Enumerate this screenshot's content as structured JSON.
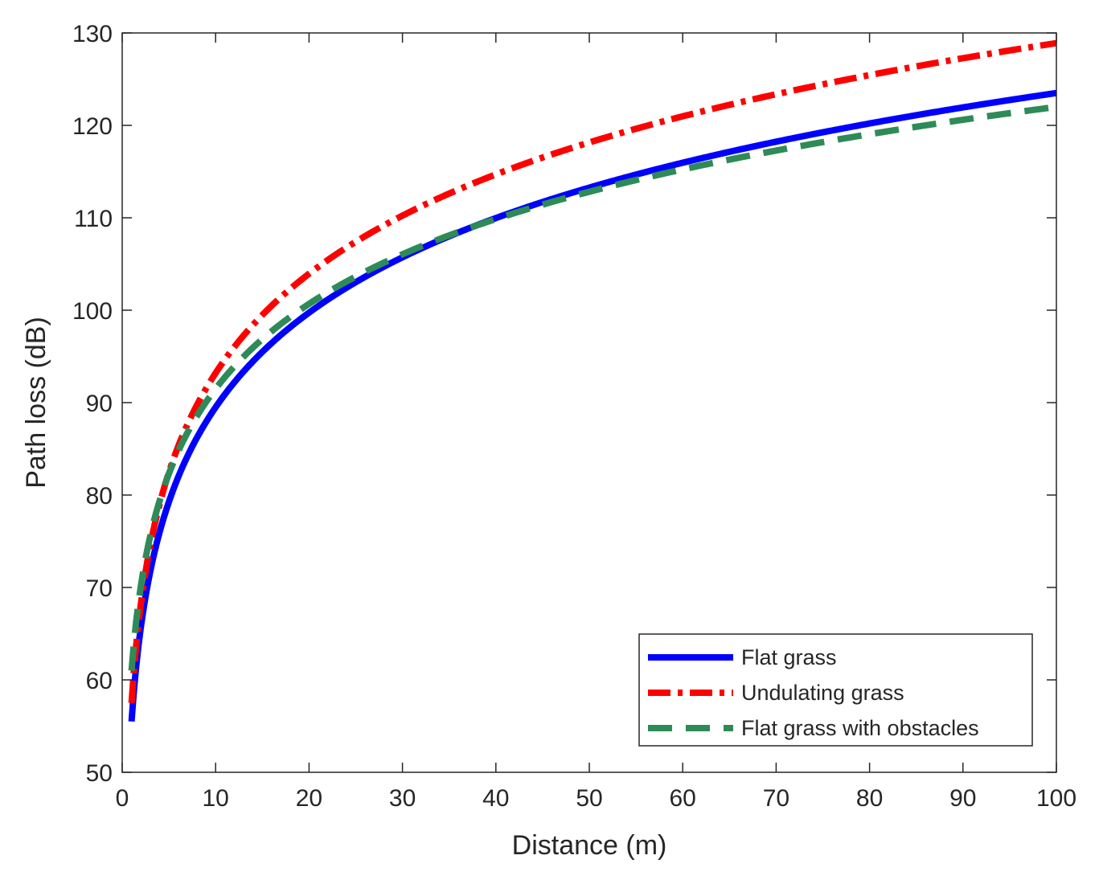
{
  "chart_data": {
    "type": "line",
    "title": "",
    "xlabel": "Distance (m)",
    "ylabel": "Path loss (dB)",
    "xlim": [
      0,
      100
    ],
    "ylim": [
      50,
      130
    ],
    "xticks": [
      0,
      10,
      20,
      30,
      40,
      50,
      60,
      70,
      80,
      90,
      100
    ],
    "yticks": [
      50,
      60,
      70,
      80,
      90,
      100,
      110,
      120,
      130
    ],
    "grid": false,
    "legend_position": "bottom-right",
    "series": [
      {
        "name": "Flat grass",
        "color": "#0000ff",
        "style": "solid",
        "model": {
          "intercept_db": 55.5,
          "slope_db_per_decade": 34,
          "d_min": 1,
          "d_max": 100
        },
        "x": [
          1,
          2,
          5,
          10,
          20,
          30,
          40,
          50,
          60,
          70,
          80,
          90,
          100
        ],
        "values": [
          55.5,
          65.7,
          79.3,
          89.5,
          99.7,
          105.7,
          109.9,
          113.3,
          116.0,
          118.2,
          120.2,
          122.0,
          123.5
        ]
      },
      {
        "name": "Undulating grass",
        "color": "#ff0000",
        "style": "dashdot",
        "model": {
          "intercept_db": 57.5,
          "slope_db_per_decade": 35.7,
          "d_min": 1,
          "d_max": 100
        },
        "x": [
          1,
          2,
          5,
          10,
          20,
          30,
          40,
          50,
          60,
          70,
          80,
          90,
          100
        ],
        "values": [
          57.5,
          68.2,
          82.5,
          93.2,
          103.9,
          110.2,
          114.7,
          118.2,
          121.0,
          123.4,
          125.4,
          127.3,
          128.9
        ]
      },
      {
        "name": "Flat grass with obstacles",
        "color": "#2e8b57",
        "style": "dashed",
        "model": {
          "intercept_db": 61.0,
          "slope_db_per_decade": 30.5,
          "d_min": 1,
          "d_max": 100
        },
        "x": [
          1,
          2,
          5,
          10,
          20,
          30,
          40,
          50,
          60,
          70,
          80,
          90,
          100
        ],
        "values": [
          61.0,
          70.2,
          82.3,
          91.5,
          100.7,
          106.1,
          109.9,
          112.8,
          115.2,
          117.3,
          119.0,
          120.6,
          122.0
        ]
      }
    ]
  }
}
